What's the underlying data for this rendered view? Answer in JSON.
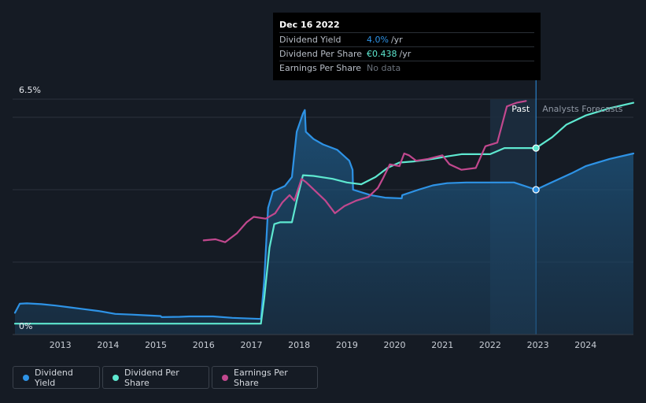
{
  "chart_data": {
    "type": "line",
    "x_ticks": [
      "2013",
      "2014",
      "2015",
      "2016",
      "2017",
      "2018",
      "2019",
      "2020",
      "2021",
      "2022",
      "2023",
      "2024"
    ],
    "y_tick_labels": [
      "6.5%",
      "0%"
    ],
    "ylim": [
      0,
      6.5
    ],
    "xlim": [
      2012.0,
      2025.0
    ],
    "past_label": "Past",
    "forecast_label": "Analysts Forecasts",
    "forecast_start": 2022.96,
    "grid": true,
    "series": [
      {
        "name": "Dividend Yield",
        "color": "#2e93e6",
        "fill": true,
        "points": [
          [
            2012.05,
            0.6
          ],
          [
            2012.15,
            0.85
          ],
          [
            2012.3,
            0.86
          ],
          [
            2012.6,
            0.84
          ],
          [
            2012.9,
            0.8
          ],
          [
            2013.2,
            0.75
          ],
          [
            2013.5,
            0.7
          ],
          [
            2013.8,
            0.65
          ],
          [
            2014.15,
            0.57
          ],
          [
            2014.5,
            0.55
          ],
          [
            2014.8,
            0.53
          ],
          [
            2015.1,
            0.51
          ],
          [
            2015.12,
            0.48
          ],
          [
            2015.5,
            0.49
          ],
          [
            2015.7,
            0.5
          ],
          [
            2016.2,
            0.5
          ],
          [
            2016.6,
            0.46
          ],
          [
            2017.2,
            0.43
          ],
          [
            2017.27,
            1.5
          ],
          [
            2017.35,
            3.5
          ],
          [
            2017.45,
            3.95
          ],
          [
            2017.7,
            4.1
          ],
          [
            2017.85,
            4.35
          ],
          [
            2017.95,
            5.6
          ],
          [
            2018.08,
            6.1
          ],
          [
            2018.12,
            6.2
          ],
          [
            2018.14,
            5.6
          ],
          [
            2018.3,
            5.4
          ],
          [
            2018.5,
            5.25
          ],
          [
            2018.8,
            5.1
          ],
          [
            2019.05,
            4.8
          ],
          [
            2019.12,
            4.55
          ],
          [
            2019.13,
            4.0
          ],
          [
            2019.5,
            3.85
          ],
          [
            2019.8,
            3.78
          ],
          [
            2020.15,
            3.76
          ],
          [
            2020.16,
            3.85
          ],
          [
            2020.5,
            4.0
          ],
          [
            2020.8,
            4.12
          ],
          [
            2021.1,
            4.18
          ],
          [
            2021.5,
            4.2
          ],
          [
            2022.0,
            4.2
          ],
          [
            2022.5,
            4.2
          ],
          [
            2022.96,
            4.0
          ],
          [
            2023.2,
            4.15
          ],
          [
            2023.7,
            4.45
          ],
          [
            2024.0,
            4.65
          ],
          [
            2024.5,
            4.85
          ],
          [
            2025.0,
            5.0
          ]
        ]
      },
      {
        "name": "Dividend Per Share",
        "color": "#5ee8d0",
        "fill": false,
        "points": [
          [
            2012.05,
            0.3
          ],
          [
            2017.2,
            0.3
          ],
          [
            2017.27,
            1.0
          ],
          [
            2017.38,
            2.4
          ],
          [
            2017.48,
            3.05
          ],
          [
            2017.6,
            3.1
          ],
          [
            2017.85,
            3.1
          ],
          [
            2017.95,
            3.7
          ],
          [
            2018.08,
            4.4
          ],
          [
            2018.3,
            4.38
          ],
          [
            2018.7,
            4.3
          ],
          [
            2019.0,
            4.2
          ],
          [
            2019.3,
            4.15
          ],
          [
            2019.6,
            4.35
          ],
          [
            2019.85,
            4.6
          ],
          [
            2020.1,
            4.75
          ],
          [
            2020.4,
            4.78
          ],
          [
            2020.8,
            4.85
          ],
          [
            2021.1,
            4.92
          ],
          [
            2021.4,
            4.98
          ],
          [
            2021.8,
            4.98
          ],
          [
            2022.0,
            4.98
          ],
          [
            2022.3,
            5.15
          ],
          [
            2022.96,
            5.15
          ],
          [
            2023.3,
            5.45
          ],
          [
            2023.6,
            5.8
          ],
          [
            2024.0,
            6.05
          ],
          [
            2024.5,
            6.25
          ],
          [
            2025.0,
            6.4
          ]
        ]
      },
      {
        "name": "Earnings Per Share",
        "color": "#c1488e",
        "fill": false,
        "points": [
          [
            2016.0,
            2.6
          ],
          [
            2016.25,
            2.63
          ],
          [
            2016.45,
            2.55
          ],
          [
            2016.7,
            2.8
          ],
          [
            2016.9,
            3.1
          ],
          [
            2017.05,
            3.25
          ],
          [
            2017.3,
            3.2
          ],
          [
            2017.5,
            3.35
          ],
          [
            2017.65,
            3.65
          ],
          [
            2017.8,
            3.85
          ],
          [
            2017.9,
            3.7
          ],
          [
            2018.05,
            4.3
          ],
          [
            2018.15,
            4.2
          ],
          [
            2018.35,
            3.95
          ],
          [
            2018.55,
            3.7
          ],
          [
            2018.75,
            3.35
          ],
          [
            2018.95,
            3.55
          ],
          [
            2019.2,
            3.7
          ],
          [
            2019.45,
            3.8
          ],
          [
            2019.65,
            4.05
          ],
          [
            2019.75,
            4.3
          ],
          [
            2019.9,
            4.7
          ],
          [
            2020.1,
            4.65
          ],
          [
            2020.2,
            5.0
          ],
          [
            2020.3,
            4.95
          ],
          [
            2020.45,
            4.8
          ],
          [
            2020.7,
            4.85
          ],
          [
            2021.0,
            4.95
          ],
          [
            2021.15,
            4.7
          ],
          [
            2021.4,
            4.55
          ],
          [
            2021.7,
            4.6
          ],
          [
            2021.9,
            5.2
          ],
          [
            2022.15,
            5.3
          ],
          [
            2022.35,
            6.3
          ],
          [
            2022.55,
            6.4
          ],
          [
            2022.75,
            6.45
          ]
        ]
      }
    ],
    "markers": [
      {
        "series": "Dividend Per Share",
        "x": 2022.96,
        "y": 5.15
      },
      {
        "series": "Dividend Yield",
        "x": 2022.96,
        "y": 4.0
      }
    ]
  },
  "tooltip": {
    "date": "Dec 16 2022",
    "rows": [
      {
        "label": "Dividend Yield",
        "value": "4.0%",
        "unit": "/yr",
        "color": "#2e93e6"
      },
      {
        "label": "Dividend Per Share",
        "value": "€0.438",
        "unit": "/yr",
        "color": "#5ee8d0"
      },
      {
        "label": "Earnings Per Share",
        "value": "No data",
        "unit": "",
        "color": "#6b727c"
      }
    ]
  },
  "legend": [
    {
      "label": "Dividend Yield",
      "color": "#2e93e6"
    },
    {
      "label": "Dividend Per Share",
      "color": "#5ee8d0"
    },
    {
      "label": "Earnings Per Share",
      "color": "#c1488e"
    }
  ]
}
